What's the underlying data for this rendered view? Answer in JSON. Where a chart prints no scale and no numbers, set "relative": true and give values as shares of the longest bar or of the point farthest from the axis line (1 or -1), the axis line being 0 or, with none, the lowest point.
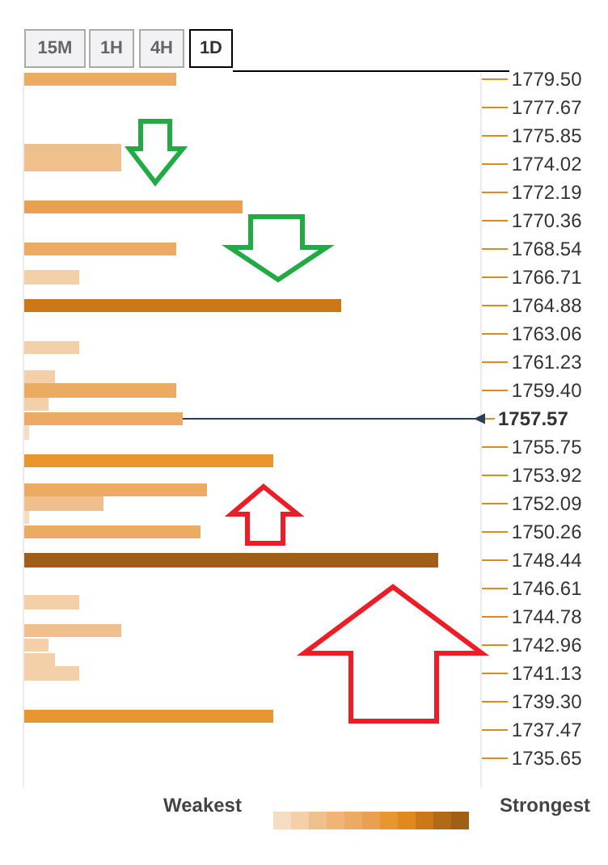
{
  "chart_data": {
    "type": "bar",
    "orientation": "horizontal",
    "relative": true,
    "x": [
      1779.5,
      1774.93,
      1774.02,
      1771.28,
      1768.54,
      1766.71,
      1764.88,
      1762.14,
      1760.31,
      1759.4,
      1758.49,
      1757.57,
      1756.66,
      1754.83,
      1753.0,
      1752.09,
      1751.17,
      1750.26,
      1748.44,
      1745.69,
      1743.86,
      1742.94,
      1742.03,
      1741.11,
      1738.37
    ],
    "values": [
      0.367,
      0.234,
      0.234,
      0.527,
      0.367,
      0.133,
      0.766,
      0.133,
      0.074,
      0.367,
      0.059,
      0.383,
      0.012,
      0.602,
      0.441,
      0.191,
      0.012,
      0.426,
      1,
      0.133,
      0.234,
      0.059,
      0.074,
      0.133,
      0.602
    ],
    "colors": [
      "#ecab62",
      "#f0c08c",
      "#f0c08c",
      "#e9a04f",
      "#ecab62",
      "#f4d0a8",
      "#cd7818",
      "#f4d0a8",
      "#f4d0a8",
      "#ecab62",
      "#f4d0a8",
      "#ecab62",
      "#f6dcc0",
      "#e8962f",
      "#ecab62",
      "#f0c08c",
      "#f6dcc0",
      "#ecab62",
      "#a05f16",
      "#f4d0a8",
      "#f0c08c",
      "#f4d0a8",
      "#f4d0a8",
      "#f4d0a8",
      "#e8962f"
    ],
    "ylim": [
      1733.75,
      1779.92
    ],
    "yticks": [
      {
        "value": 1779.5,
        "label": "1779.50"
      },
      1777.67,
      1775.85,
      1774.02,
      1772.19,
      1770.36,
      1768.54,
      1766.71,
      1764.88,
      1763.06,
      1761.23,
      {
        "value": 1759.4,
        "label": "1759.40"
      },
      1755.75,
      1753.92,
      1752.09,
      1750.26,
      1748.44,
      1746.61,
      1744.78,
      1742.96,
      1741.13,
      {
        "value": 1739.3,
        "label": "1739.30"
      },
      1737.47,
      1735.65
    ],
    "ref_lines": [
      {
        "axis": "y",
        "value": 1757.57,
        "label": "1757.57",
        "color": "#2c3e5c"
      }
    ],
    "annotations": [
      "15M",
      "1H",
      "4H",
      "1D",
      "Weakest",
      "Strongest"
    ],
    "legend": false
  }
}
